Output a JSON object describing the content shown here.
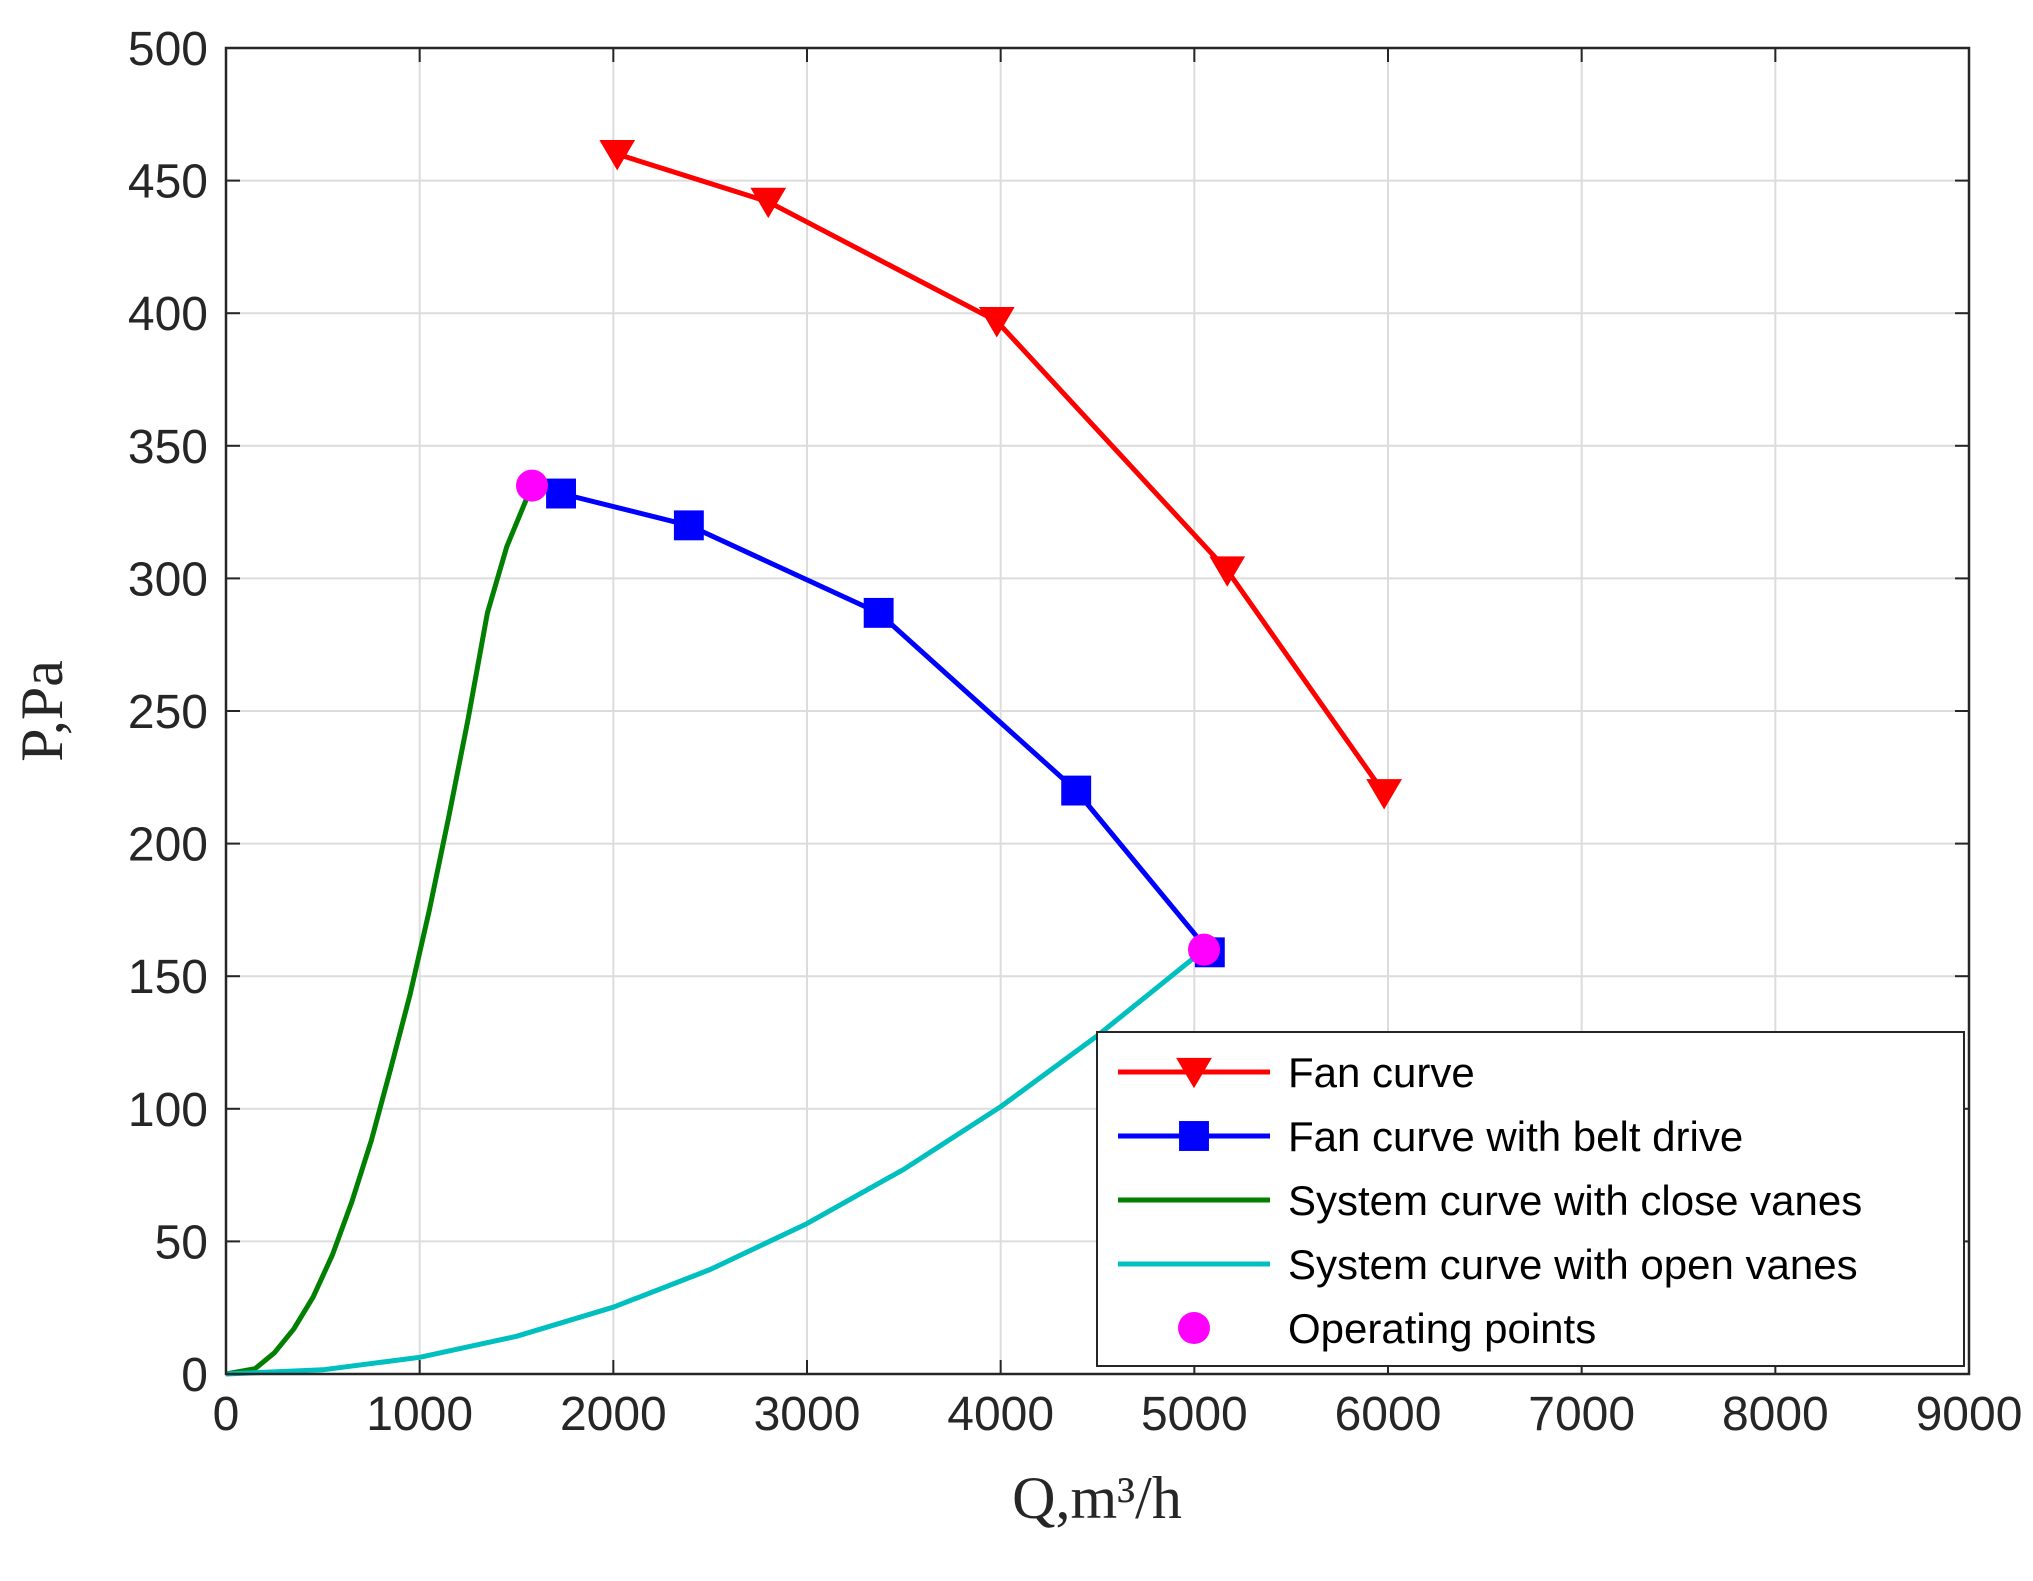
{
  "chart_data": {
    "type": "line",
    "xlabel": "Q,m³/h",
    "ylabel": "P,Pa",
    "xlim": [
      0,
      9000
    ],
    "ylim": [
      0,
      500
    ],
    "x_ticks": [
      "0",
      "1000",
      "2000",
      "3000",
      "4000",
      "5000",
      "6000",
      "7000",
      "8000",
      "9000"
    ],
    "y_ticks": [
      "0",
      "50",
      "100",
      "150",
      "200",
      "250",
      "300",
      "350",
      "400",
      "450",
      "500"
    ],
    "grid": true,
    "legend_position": "bottom-right",
    "series": [
      {
        "name": "Fan curve",
        "color": "#ff0000",
        "marker": "triangle-down",
        "points": [
          [
            2020,
            460
          ],
          [
            2800,
            442
          ],
          [
            3980,
            397
          ],
          [
            5170,
            303
          ],
          [
            5980,
            219
          ]
        ]
      },
      {
        "name": "Fan curve with belt drive",
        "color": "#0000ff",
        "marker": "square",
        "points": [
          [
            1730,
            332
          ],
          [
            2390,
            320
          ],
          [
            3370,
            287
          ],
          [
            4390,
            220
          ],
          [
            5080,
            159
          ]
        ]
      },
      {
        "name": "System curve with close vanes",
        "color": "#007f00",
        "marker": "none",
        "points": [
          [
            0,
            0
          ],
          [
            150,
            2
          ],
          [
            250,
            8
          ],
          [
            350,
            17
          ],
          [
            450,
            29
          ],
          [
            550,
            45
          ],
          [
            650,
            65
          ],
          [
            750,
            88
          ],
          [
            850,
            115
          ],
          [
            950,
            143
          ],
          [
            1050,
            175
          ],
          [
            1150,
            210
          ],
          [
            1250,
            247
          ],
          [
            1350,
            287
          ],
          [
            1450,
            312
          ],
          [
            1580,
            335
          ]
        ]
      },
      {
        "name": "System curve with open vanes",
        "color": "#00bfbf",
        "marker": "none",
        "points": [
          [
            0,
            0
          ],
          [
            500,
            1.6
          ],
          [
            1000,
            6.3
          ],
          [
            1500,
            14.2
          ],
          [
            2000,
            25.2
          ],
          [
            2500,
            39.4
          ],
          [
            3000,
            56.7
          ],
          [
            3500,
            77.2
          ],
          [
            4000,
            100.8
          ],
          [
            4500,
            127.6
          ],
          [
            5050,
            160
          ]
        ]
      },
      {
        "name": "Operating points",
        "color": "#ff00ff",
        "marker": "circle",
        "points": [
          [
            1580,
            335
          ],
          [
            5050,
            160
          ]
        ]
      }
    ]
  }
}
